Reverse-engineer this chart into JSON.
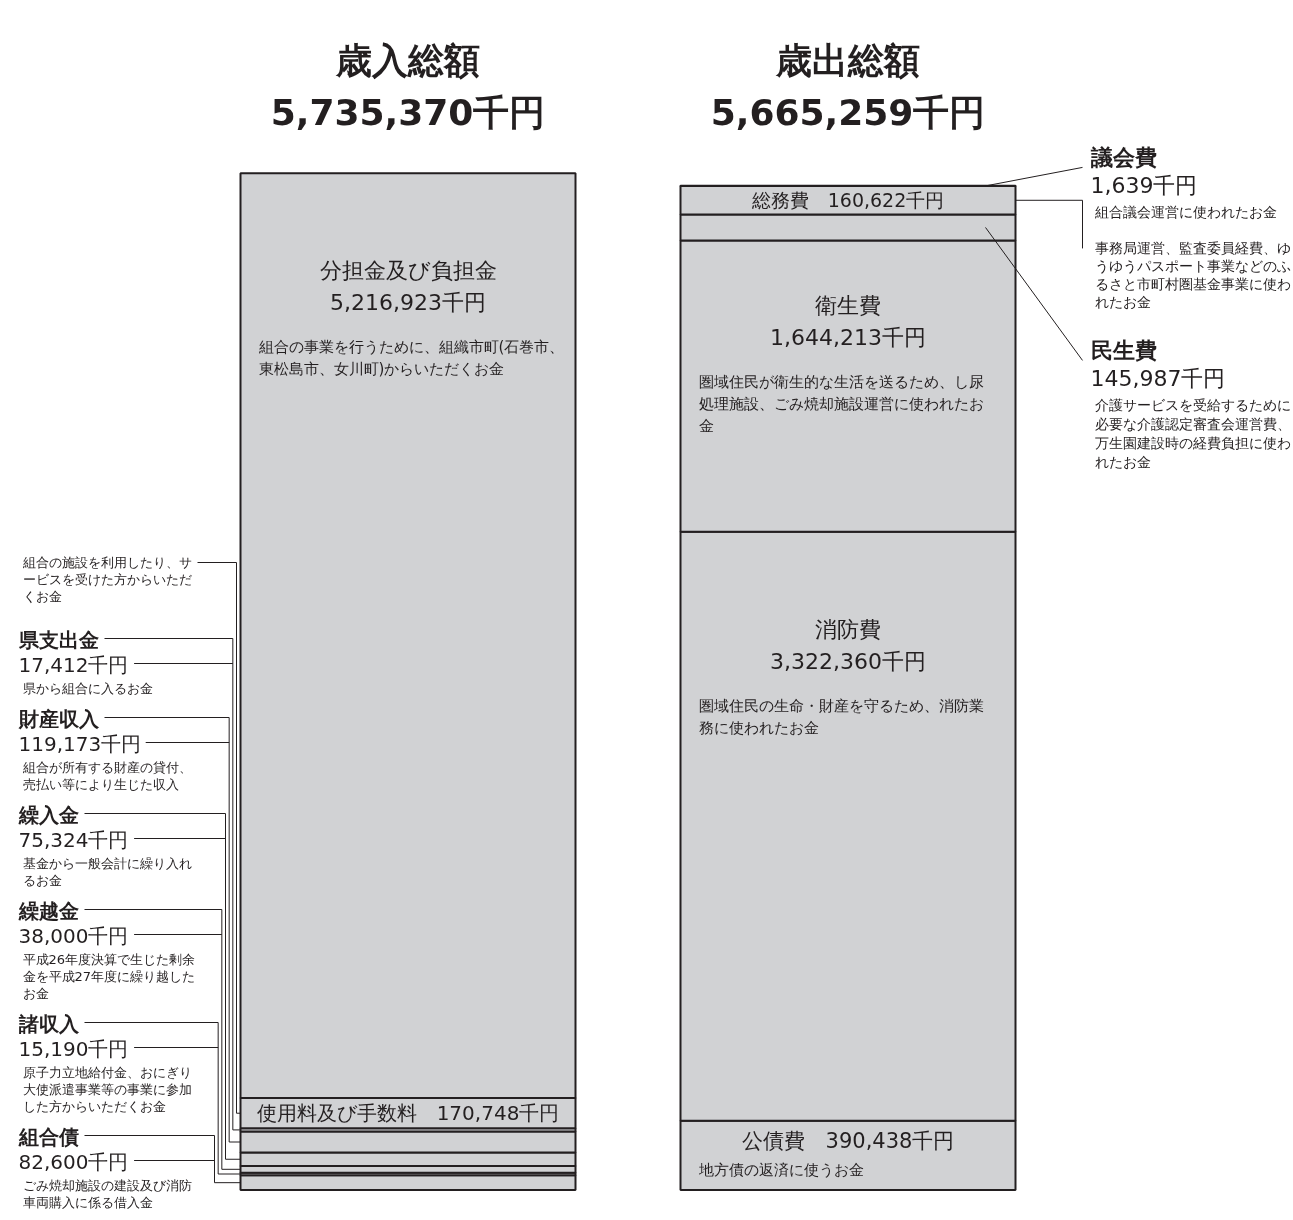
{
  "chart_data": {
    "type": "bar",
    "stacked": true,
    "categories": [
      "歳入総額",
      "歳出総額"
    ],
    "totals": [
      "5,735,370千円",
      "5,665,259千円"
    ],
    "series": [
      {
        "name": "組合債",
        "color": "#d1d2d4",
        "values": [
          82600,
          null
        ],
        "value_labels": [
          "82,600千円",
          null
        ]
      },
      {
        "name": "諸収入",
        "color": "#d1d2d4",
        "values": [
          15190,
          null
        ],
        "value_labels": [
          "15,190千円",
          null
        ]
      },
      {
        "name": "繰越金",
        "color": "#d1d2d4",
        "values": [
          38000,
          null
        ],
        "value_labels": [
          "38,000千円",
          null
        ]
      },
      {
        "name": "繰入金",
        "color": "#d1d2d4",
        "values": [
          75324,
          null
        ],
        "value_labels": [
          "75,324千円",
          null
        ]
      },
      {
        "name": "財産収入",
        "color": "#d1d2d4",
        "values": [
          119173,
          null
        ],
        "value_labels": [
          "119,173千円",
          null
        ]
      },
      {
        "name": "県支出金",
        "color": "#d1d2d4",
        "values": [
          17412,
          null
        ],
        "value_labels": [
          "17,412千円",
          null
        ]
      },
      {
        "name": "使用料及び手数料",
        "color": "#d1d2d4",
        "values": [
          170748,
          null
        ],
        "value_labels": [
          "170,748千円",
          null
        ]
      },
      {
        "name": "分担金及び負担金",
        "color": "#d1d2d4",
        "values": [
          5216923,
          null
        ],
        "value_labels": [
          "5,216,923千円",
          null
        ]
      },
      {
        "name": "公債費",
        "color": "#d1d2d4",
        "values": [
          null,
          390438
        ],
        "value_labels": [
          null,
          "390,438千円"
        ]
      },
      {
        "name": "消防費",
        "color": "#d1d2d4",
        "values": [
          null,
          3322360
        ],
        "value_labels": [
          null,
          "3,322,360千円"
        ]
      },
      {
        "name": "衛生費",
        "color": "#d1d2d4",
        "values": [
          null,
          1644213
        ],
        "value_labels": [
          null,
          "1,644,213千円"
        ]
      },
      {
        "name": "民生費",
        "color": "#d1d2d4",
        "values": [
          null,
          145987
        ],
        "value_labels": [
          null,
          "145,987千円"
        ]
      },
      {
        "name": "総務費",
        "color": "#d1d2d4",
        "values": [
          null,
          160622
        ],
        "value_labels": [
          null,
          "160,622千円"
        ]
      },
      {
        "name": "議会費",
        "color": "#d1d2d4",
        "values": [
          null,
          1639
        ],
        "value_labels": [
          null,
          "1,639千円"
        ]
      }
    ],
    "annotations": [
      "ごみ焼却施設の建設及び消防車両購入に係る借入金",
      "原子力立地給付金、おにぎり大使派遣事業等の事業に参加した方からいただくお金",
      "平成26年度決算で生じた剰余金を平成27年度に繰り越したお金",
      "基金から一般会計に繰り入れるお金",
      "組合が所有する財産の貸付、売払い等により生じた収入",
      "県から組合に入るお金",
      "組合の施設を利用したり、サービスを受けた方からいただくお金",
      "組合の事業を行うために、組織市町(石巻市、東松島市、女川町)からいただくお金",
      "地方債の返済に使うお金",
      "圏域住民の生命・財産を守るため、消防業務に使われたお金",
      "圏域住民が衛生的な生活を送るため、し尿処理施設、ごみ焼却施設運営に使われたお金",
      "介護サービスを受給するために必要な介護認定審査会運営費、万生園建設時の経費負担に使われたお金",
      "事務局運営、監査委員経費、ゆうゆうパスポート事業などのふるさと市町村圏基金事業に使われたお金",
      "組合議会運営に使われたお金"
    ]
  }
}
